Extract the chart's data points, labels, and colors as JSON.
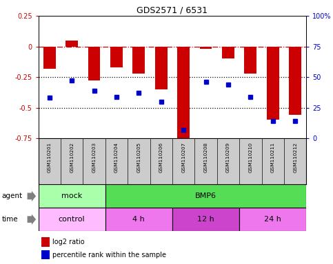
{
  "title": "GDS2571 / 6531",
  "samples": [
    "GSM110201",
    "GSM110202",
    "GSM110203",
    "GSM110204",
    "GSM110205",
    "GSM110206",
    "GSM110207",
    "GSM110208",
    "GSM110209",
    "GSM110210",
    "GSM110211",
    "GSM110212"
  ],
  "log2_ratio": [
    -0.18,
    0.05,
    -0.28,
    -0.17,
    -0.22,
    -0.35,
    -0.77,
    -0.02,
    -0.1,
    -0.22,
    -0.6,
    -0.56
  ],
  "percentile": [
    33,
    47,
    39,
    34,
    37,
    30,
    7,
    46,
    44,
    34,
    14,
    14
  ],
  "ylim_left": [
    -0.75,
    0.25
  ],
  "ylim_right": [
    0,
    100
  ],
  "yticks_left": [
    -0.75,
    -0.5,
    -0.25,
    0,
    0.25
  ],
  "yticks_right": [
    0,
    25,
    50,
    75,
    100
  ],
  "bar_color": "#cc0000",
  "dot_color": "#0000cc",
  "hline_color": "#cc0000",
  "dotted_line_color": "#000000",
  "agent_groups": [
    {
      "label": "mock",
      "start": 0,
      "end": 3,
      "color": "#aaffaa"
    },
    {
      "label": "BMP6",
      "start": 3,
      "end": 12,
      "color": "#55dd55"
    }
  ],
  "time_groups": [
    {
      "label": "control",
      "start": 0,
      "end": 3,
      "color": "#ffbbff"
    },
    {
      "label": "4 h",
      "start": 3,
      "end": 6,
      "color": "#ee77ee"
    },
    {
      "label": "12 h",
      "start": 6,
      "end": 9,
      "color": "#cc44cc"
    },
    {
      "label": "24 h",
      "start": 9,
      "end": 12,
      "color": "#ee77ee"
    }
  ],
  "legend_red": "log2 ratio",
  "legend_blue": "percentile rank within the sample",
  "bg_color": "#ffffff",
  "tick_bg_color": "#cccccc"
}
